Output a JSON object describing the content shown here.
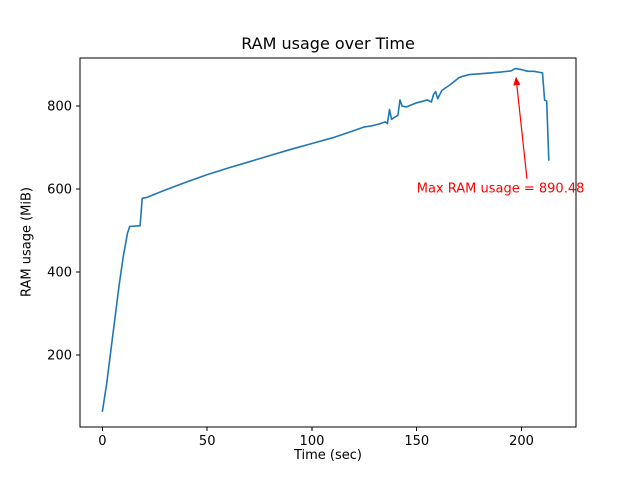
{
  "chart_data": {
    "type": "line",
    "title": "RAM usage over Time",
    "xlabel": "Time (sec)",
    "ylabel": "RAM usage (MiB)",
    "xlim": [
      -10.7,
      226
    ],
    "ylim": [
      27,
      916
    ],
    "x_ticks": [
      0,
      50,
      100,
      150,
      200
    ],
    "y_ticks": [
      200,
      400,
      600,
      800
    ],
    "grid": false,
    "legend": "none",
    "line_color": "#1f77b4",
    "series": [
      {
        "name": "RAM usage (MiB)",
        "x": [
          0,
          2,
          4,
          6,
          8,
          10,
          12,
          13,
          18,
          19,
          21,
          30,
          40,
          50,
          60,
          70,
          80,
          90,
          100,
          110,
          120,
          125,
          128,
          132,
          135,
          136,
          137,
          138,
          139,
          141,
          142,
          143,
          145,
          147,
          150,
          153,
          155,
          157,
          158,
          159,
          160,
          162,
          164,
          166,
          168,
          170,
          172,
          175,
          180,
          185,
          190,
          195,
          197,
          200,
          203,
          206,
          208,
          210,
          211,
          212,
          213
        ],
        "y": [
          65,
          130,
          210,
          290,
          370,
          440,
          495,
          510,
          512,
          578,
          580,
          598,
          617,
          635,
          651,
          666,
          681,
          696,
          710,
          724,
          741,
          750,
          752,
          757,
          762,
          758,
          792,
          768,
          772,
          778,
          815,
          800,
          798,
          802,
          808,
          812,
          815,
          810,
          828,
          835,
          818,
          838,
          845,
          852,
          860,
          868,
          872,
          876,
          878,
          880,
          882,
          885,
          890.48,
          888,
          884,
          884,
          882,
          880,
          815,
          812,
          670
        ]
      }
    ],
    "annotation": {
      "text": "Max RAM usage = 890.48",
      "max_value": 890.48,
      "color": "#ff0000",
      "text_x": 190,
      "text_y": 600,
      "arrow_from_x": 202.6,
      "arrow_from_y": 625,
      "arrow_to_x": 197.4,
      "arrow_to_y": 868
    }
  }
}
